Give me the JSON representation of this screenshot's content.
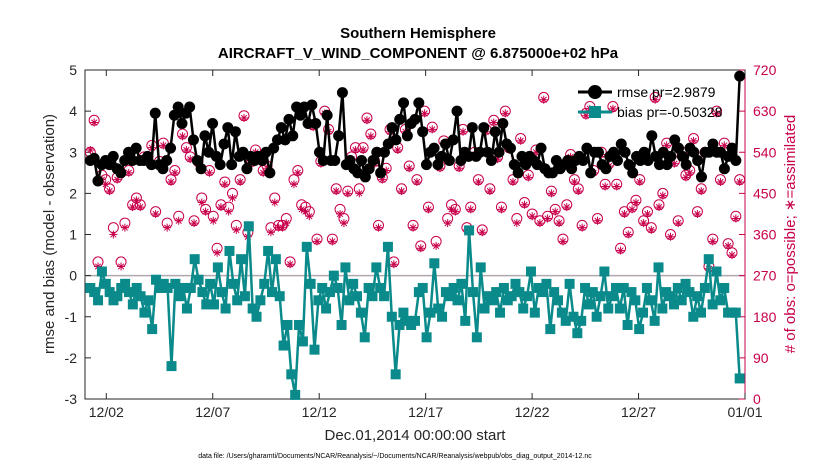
{
  "chart_data": {
    "type": "line",
    "title": "Southern Hemisphere",
    "subtitle": "AIRCRAFT_V_WIND_COMPONENT @ 6.875000e+02 hPa",
    "xlabel": "Dec.01,2014 00:00:00 start",
    "ylabel": "rmse and bias (model - observation)",
    "ylabel_right": "# of obs: o=possible; ∗=assimilated",
    "xlim": [
      0,
      31
    ],
    "ylim": [
      -3,
      5
    ],
    "ylim_right": [
      0,
      720
    ],
    "x_ticks": [
      {
        "x": 1,
        "label": "12/02"
      },
      {
        "x": 6,
        "label": "12/07"
      },
      {
        "x": 11,
        "label": "12/12"
      },
      {
        "x": 16,
        "label": "12/17"
      },
      {
        "x": 21,
        "label": "12/22"
      },
      {
        "x": 26,
        "label": "12/27"
      },
      {
        "x": 31,
        "label": "01/01"
      }
    ],
    "y_ticks": [
      "-3",
      "-2",
      "-1",
      "0",
      "1",
      "2",
      "3",
      "4",
      "5"
    ],
    "y_ticks_right": [
      "0",
      "90",
      "180",
      "270",
      "360",
      "450",
      "540",
      "630",
      "720"
    ],
    "footer": "data file: /Users/gharamti/Documents/NCAR/Reanalysis/~/Documents/NCAR/Reanalysis/webpub/obs_diag_output_2014-12.nc",
    "series": [
      {
        "name": "rmse",
        "legend": "rmse pr=2.9879",
        "color": "#000000",
        "marker": "circle",
        "values": [
          2.8,
          2.85,
          2.3,
          2.7,
          2.8,
          2.7,
          2.9,
          2.6,
          2.5,
          2.8,
          3,
          2.8,
          3.1,
          2.8,
          2.8,
          2.9,
          2.7,
          3.95,
          2.7,
          2.6,
          2.8,
          3.1,
          3.9,
          4.1,
          3.7,
          3.95,
          4.1,
          3.3,
          2.8,
          2.6,
          3.4,
          3,
          3.7,
          2.9,
          2.7,
          3.2,
          3.6,
          2.7,
          3.5,
          2.9,
          3,
          2.6,
          2.9,
          2.8,
          2.9,
          2.8,
          3,
          2.5,
          3.1,
          3.3,
          3.6,
          3.3,
          3.8,
          3.4,
          4.1,
          3.9,
          4.1,
          3.7,
          4.15,
          3.7,
          3,
          2.8,
          3.9,
          2.8,
          2.8,
          3.4,
          4.45,
          2.7,
          2.8,
          2.6,
          2.5,
          2.8,
          2.4,
          2.6,
          2.8,
          3,
          2.5,
          3,
          3.2,
          3.6,
          3.3,
          3.8,
          4.2,
          3.4,
          3.7,
          3.8,
          4.2,
          3.5,
          2.7,
          3,
          3.1,
          2.7,
          2.9,
          3.2,
          2.8,
          3.3,
          4,
          2.8,
          3,
          2.9,
          3.6,
          2.9,
          3,
          3.6,
          3,
          2.8,
          3.5,
          3,
          3.7,
          3.2,
          3.1,
          2.7,
          2.5,
          2.9,
          2.7,
          2.9,
          2.8,
          2.7,
          3.1,
          2.6,
          2.5,
          2.5,
          2.8,
          2.6,
          2.7,
          2.8,
          2.6,
          2.8,
          2.9,
          2.8,
          3.1,
          2.5,
          3,
          3,
          2.7,
          2.6,
          2.9,
          3,
          2.8,
          3.2,
          3,
          2.7,
          2.5,
          2.9,
          2.8,
          3,
          2.8,
          3.4,
          2.9,
          2.7,
          3,
          2.7,
          2.9,
          3.3,
          3.1,
          2.9,
          2.7,
          3.1,
          3,
          2.8,
          2.4,
          3,
          3,
          3.2,
          3,
          3,
          2.6,
          2.9,
          3.1,
          2.8,
          4.85
        ]
      },
      {
        "name": "bias",
        "legend": "bias pr=-0.50328",
        "color": "#0a8a8a",
        "marker": "square",
        "values": [
          -0.3,
          -0.4,
          -0.6,
          0.1,
          -0.2,
          -0.4,
          -0.6,
          -0.5,
          -0.3,
          -0.2,
          -0.4,
          -0.7,
          -0.3,
          -0.5,
          -0.9,
          -0.6,
          -1.3,
          -0.1,
          -0.3,
          -0.2,
          -0.3,
          -2.2,
          -0.2,
          -0.5,
          -0.3,
          -0.8,
          -0.3,
          0.4,
          -0.1,
          -0.4,
          -0.7,
          -0.2,
          -0.7,
          0.2,
          -0.4,
          -0.8,
          0.6,
          -0.2,
          -0.6,
          0.4,
          -0.5,
          1.2,
          -0.8,
          -1,
          -0.6,
          -0.2,
          0.6,
          -0.4,
          0.4,
          -0.5,
          -1.7,
          -1.2,
          -2.4,
          -2.9,
          -1.2,
          -1.6,
          0.7,
          -0.2,
          -1.8,
          -0.6,
          -0.3,
          -0.8,
          -0.4,
          0,
          -0.3,
          -1.2,
          0.2,
          -0.6,
          -0.2,
          -0.5,
          -0.9,
          -1.5,
          -0.3,
          -0.5,
          0.2,
          -0.3,
          -0.5,
          0.7,
          -1,
          -2.4,
          -1.2,
          -0.9,
          -1.1,
          -1.2,
          -1.1,
          -0.4,
          -0.3,
          -1.5,
          -0.9,
          0.3,
          -0.8,
          -1,
          -0.4,
          -0.5,
          -0.3,
          -0.6,
          -0.2,
          -1.1,
          1.1,
          -0.4,
          -1.5,
          0.2,
          -0.8,
          -0.5,
          -0.6,
          -0.4,
          -0.9,
          -0.3,
          -0.6,
          -0.5,
          -0.2,
          -0.4,
          -0.8,
          -0.5,
          0.1,
          -0.9,
          -0.3,
          -0.4,
          -0.2,
          -1.3,
          -0.4,
          -0.6,
          -0.9,
          -1.1,
          -0.2,
          -1,
          -1.4,
          -1.1,
          -0.3,
          -0.7,
          -0.4,
          -1,
          -0.5,
          0.1,
          -0.8,
          -0.5,
          -0.3,
          -0.8,
          -0.3,
          -1.2,
          -0.4,
          -0.6,
          -1.3,
          -0.9,
          -0.3,
          -0.6,
          -1.1,
          0.2,
          -0.8,
          -0.4,
          -0.5,
          -0.7,
          -0.3,
          -0.6,
          -0.2,
          -0.4,
          -1,
          -0.5,
          -0.9,
          -0.3,
          0.4,
          -0.7,
          0.1,
          -0.6,
          -0.3,
          -0.9,
          -0.9,
          -0.9,
          -2.5
        ]
      }
    ],
    "obs_possible": {
      "color": "#c8004b",
      "marker": "circle-open",
      "values": [
        540,
        610,
        300,
        490,
        480,
        460,
        375,
        485,
        300,
        385,
        500,
        425,
        440,
        425,
        530,
        530,
        555,
        410,
        520,
        560,
        385,
        480,
        500,
        400,
        580,
        550,
        530,
        390,
        520,
        440,
        415,
        500,
        400,
        330,
        425,
        475,
        420,
        450,
        380,
        480,
        620,
        365,
        520,
        545,
        530,
        500,
        510,
        375,
        440,
        380,
        380,
        395,
        300,
        480,
        500,
        425,
        420,
        410,
        600,
        350,
        520,
        630,
        590,
        350,
        460,
        415,
        395,
        455,
        530,
        550,
        460,
        550,
        615,
        580,
        520,
        380,
        485,
        505,
        590,
        300,
        550,
        460,
        590,
        510,
        380,
        480,
        335,
        630,
        420,
        595,
        345,
        510,
        565,
        395,
        425,
        415,
        510,
        590,
        375,
        420,
        540,
        480,
        370,
        590,
        460,
        610,
        530,
        420,
        630,
        550,
        480,
        395,
        570,
        430,
        490,
        405,
        545,
        390,
        660,
        400,
        455,
        415,
        390,
        350,
        425,
        535,
        480,
        460,
        380,
        625,
        640,
        500,
        395,
        540,
        470,
        515,
        640,
        470,
        330,
        410,
        365,
        420,
        435,
        480,
        390,
        410,
        375,
        660,
        425,
        450,
        560,
        360,
        520,
        390,
        540,
        490,
        500,
        570,
        410,
        460,
        540,
        290,
        350,
        630,
        480,
        560,
        340,
        320,
        400,
        480
      ]
    },
    "obs_assimilated": {
      "color": "#c8004b",
      "marker": "star",
      "values": [
        545,
        605,
        290,
        480,
        470,
        455,
        360,
        480,
        290,
        375,
        495,
        420,
        435,
        420,
        520,
        525,
        550,
        405,
        515,
        555,
        375,
        475,
        495,
        390,
        575,
        545,
        525,
        385,
        515,
        430,
        410,
        495,
        390,
        320,
        420,
        470,
        410,
        440,
        370,
        475,
        615,
        355,
        515,
        540,
        525,
        495,
        505,
        365,
        430,
        375,
        375,
        385,
        295,
        470,
        495,
        415,
        410,
        400,
        595,
        345,
        515,
        625,
        585,
        345,
        455,
        405,
        385,
        450,
        525,
        545,
        450,
        545,
        610,
        575,
        515,
        375,
        480,
        500,
        585,
        295,
        545,
        455,
        585,
        505,
        375,
        475,
        330,
        625,
        415,
        590,
        335,
        505,
        560,
        385,
        415,
        410,
        505,
        585,
        370,
        415,
        535,
        475,
        365,
        585,
        455,
        605,
        525,
        415,
        625,
        545,
        475,
        385,
        565,
        425,
        485,
        400,
        540,
        385,
        655,
        395,
        450,
        410,
        385,
        345,
        420,
        530,
        475,
        455,
        375,
        620,
        635,
        495,
        390,
        535,
        465,
        510,
        635,
        465,
        325,
        405,
        360,
        415,
        430,
        475,
        385,
        405,
        370,
        655,
        420,
        445,
        555,
        355,
        515,
        385,
        535,
        485,
        495,
        565,
        405,
        455,
        535,
        285,
        345,
        625,
        475,
        555,
        335,
        315,
        395,
        475
      ]
    }
  }
}
